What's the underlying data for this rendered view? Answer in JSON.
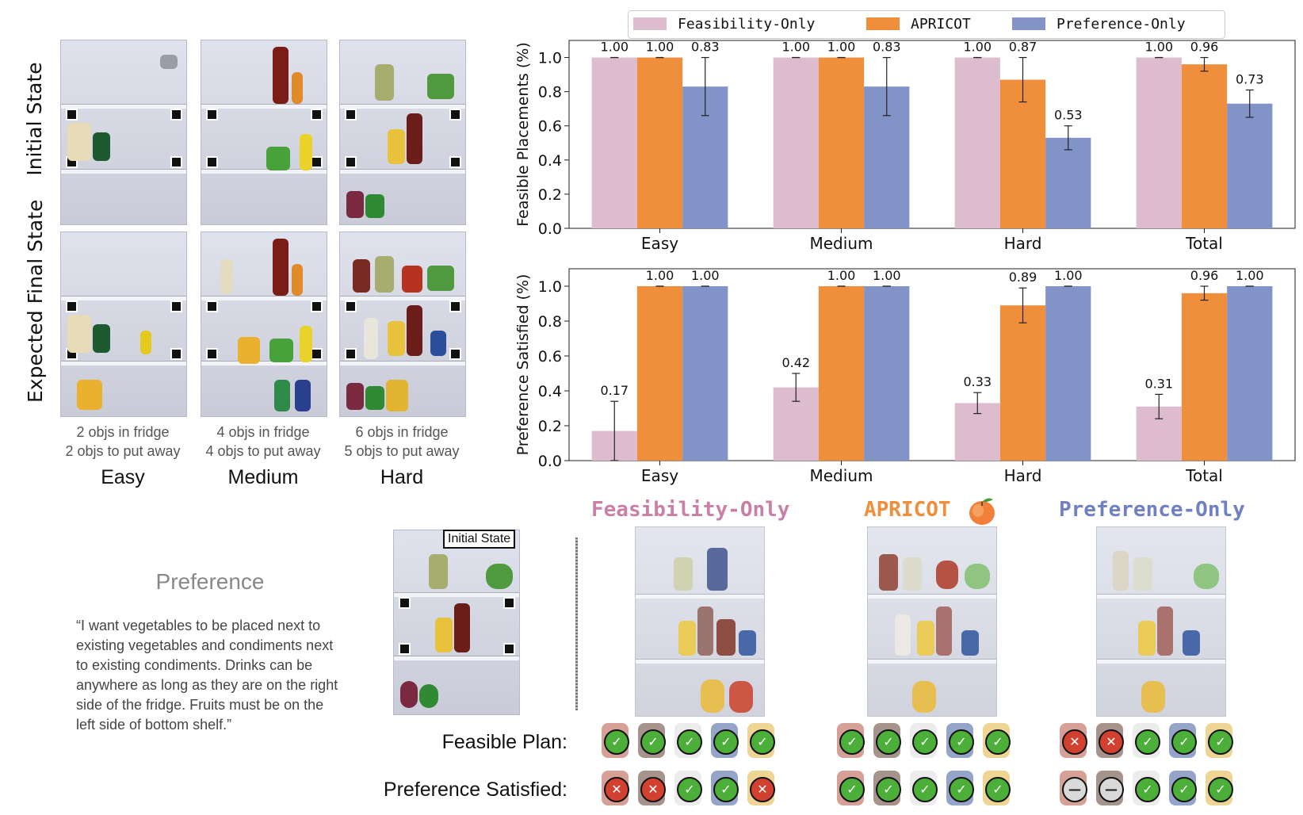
{
  "left_panel": {
    "row_labels": [
      "Initial State",
      "Expected Final State"
    ],
    "columns": [
      {
        "caption_1": "2 objs in fridge",
        "caption_2": "2 objs to put away",
        "difficulty": "Easy"
      },
      {
        "caption_1": "4 objs in fridge",
        "caption_2": "4 objs to put away",
        "difficulty": "Medium"
      },
      {
        "caption_1": "6 objs in fridge",
        "caption_2": "5 objs to put away",
        "difficulty": "Hard"
      }
    ]
  },
  "legend": {
    "items": [
      {
        "label": "Feasibility-Only",
        "color": "#dcbccd"
      },
      {
        "label": "APRICOT",
        "color": "#ef8e3b"
      },
      {
        "label": "Preference-Only",
        "color": "#8293c8"
      }
    ]
  },
  "chart_data": [
    {
      "type": "bar",
      "ylabel": "Feasible Placements (%)",
      "categories": [
        "Easy",
        "Medium",
        "Hard",
        "Total"
      ],
      "ylim": [
        0,
        1.1
      ],
      "yticks": [
        "0.0",
        "0.2",
        "0.4",
        "0.6",
        "0.8",
        "1.0"
      ],
      "series": [
        {
          "name": "Feasibility-Only",
          "values": [
            1.0,
            1.0,
            1.0,
            1.0
          ],
          "labels": [
            "1.00",
            "1.00",
            "1.00",
            "1.00"
          ],
          "err": [
            0,
            0,
            0,
            0
          ]
        },
        {
          "name": "APRICOT",
          "values": [
            1.0,
            1.0,
            0.87,
            0.96
          ],
          "labels": [
            "1.00",
            "1.00",
            "0.87",
            "0.96"
          ],
          "err": [
            0,
            0,
            0.13,
            0.04
          ]
        },
        {
          "name": "Preference-Only",
          "values": [
            0.83,
            0.83,
            0.53,
            0.73
          ],
          "labels": [
            "0.83",
            "0.83",
            "0.53",
            "0.73"
          ],
          "err": [
            0.17,
            0.17,
            0.07,
            0.08
          ]
        }
      ]
    },
    {
      "type": "bar",
      "ylabel": "Preference Satisfied (%)",
      "categories": [
        "Easy",
        "Medium",
        "Hard",
        "Total"
      ],
      "ylim": [
        0,
        1.1
      ],
      "yticks": [
        "0.0",
        "0.2",
        "0.4",
        "0.6",
        "0.8",
        "1.0"
      ],
      "series": [
        {
          "name": "Feasibility-Only",
          "values": [
            0.17,
            0.42,
            0.33,
            0.31
          ],
          "labels": [
            "0.17",
            "0.42",
            "0.33",
            "0.31"
          ],
          "err": [
            0.17,
            0.08,
            0.06,
            0.07
          ]
        },
        {
          "name": "APRICOT",
          "values": [
            1.0,
            1.0,
            0.89,
            0.96
          ],
          "labels": [
            "1.00",
            "1.00",
            "0.89",
            "0.96"
          ],
          "err": [
            0,
            0,
            0.1,
            0.04
          ]
        },
        {
          "name": "Preference-Only",
          "values": [
            1.0,
            1.0,
            1.0,
            1.0
          ],
          "labels": [
            "1.00",
            "1.00",
            "1.00",
            "1.00"
          ],
          "err": [
            0,
            0,
            0,
            0
          ]
        }
      ]
    }
  ],
  "bottom": {
    "preference_title": "Preference",
    "preference_text": "“I want vegetables to be placed next to existing vegetables and condiments next to existing condiments. Drinks can be anywhere as long as they are on the right side of the fridge. Fruits must be on the left side of bottom shelf.”",
    "initial_state_tag": "Initial State",
    "method_titles": [
      "Feasibility-Only",
      "APRICOT",
      "Preference-Only"
    ],
    "method_title_colors": [
      "#c97fa6",
      "#ef8e3b",
      "#7080c0"
    ],
    "row_feasible_label": "Feasible Plan:",
    "row_preference_label": "Preference Satisfied:",
    "results": [
      {
        "feasible": [
          "check",
          "check",
          "check",
          "check",
          "check"
        ],
        "preference": [
          "cross",
          "cross",
          "check",
          "check",
          "cross"
        ]
      },
      {
        "feasible": [
          "check",
          "check",
          "check",
          "check",
          "check"
        ],
        "preference": [
          "check",
          "check",
          "check",
          "check",
          "check"
        ]
      },
      {
        "feasible": [
          "cross",
          "cross",
          "check",
          "check",
          "check"
        ],
        "preference": [
          "dash",
          "dash",
          "check",
          "check",
          "check"
        ]
      }
    ],
    "object_colors": [
      "#b5523f",
      "#5b3a2e",
      "#dcdcdc",
      "#3e5b9e",
      "#e0b23a"
    ],
    "icons": {
      "check": "check-icon",
      "cross": "cross-icon",
      "dash": "dash-icon",
      "peach": "peach-icon"
    }
  }
}
